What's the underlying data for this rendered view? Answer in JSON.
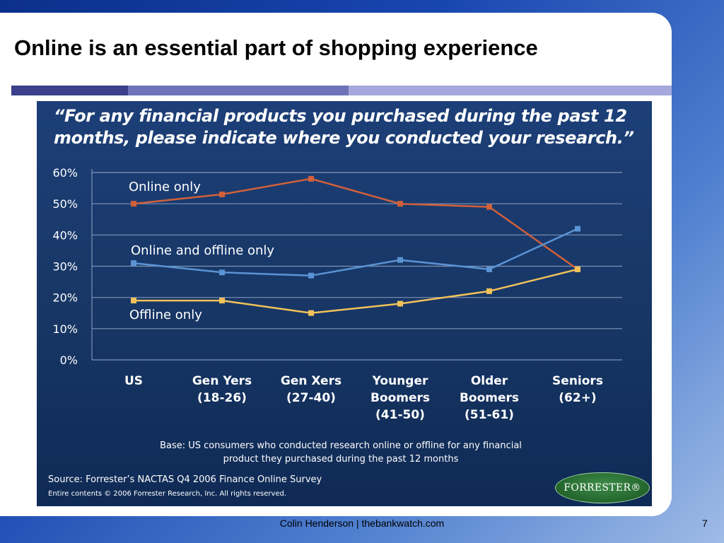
{
  "slide": {
    "title": "Online is an essential part of shopping experience",
    "footer": "Colin Henderson | thebankwatch.com",
    "page_number": "7"
  },
  "chart_panel": {
    "question": "“For any financial products you purchased during the past 12 months, please indicate where you conducted your research.”",
    "base_note": "Base: US consumers who conducted research online or offline for any financial product they purchased during the past 12 months",
    "source": "Source: Forrester’s NACTAS Q4 2006 Finance Online Survey",
    "copyright": "Entire contents © 2006  Forrester Research, Inc. All rights reserved.",
    "logo_text": "FORRESTER®"
  },
  "chart_data": {
    "type": "line",
    "title": "“For any financial products you purchased during the past 12 months, please indicate where you conducted your research.”",
    "categories": [
      [
        "US"
      ],
      [
        "Gen Yers",
        "(18-26)"
      ],
      [
        "Gen Xers",
        "(27-40)"
      ],
      [
        "Younger",
        "Boomers",
        "(41-50)"
      ],
      [
        "Older",
        "Boomers",
        "(51-61)"
      ],
      [
        "Seniors",
        "(62+)"
      ]
    ],
    "y_ticks": [
      "0%",
      "10%",
      "20%",
      "30%",
      "40%",
      "50%",
      "60%"
    ],
    "ylim": [
      0,
      60
    ],
    "grid": true,
    "series": [
      {
        "name": "Online only",
        "values": [
          50,
          53,
          58,
          50,
          49,
          29
        ],
        "color": "#d2603a"
      },
      {
        "name": "Online and offline only",
        "values": [
          31,
          28,
          27,
          32,
          29,
          42
        ],
        "color": "#5b93d4"
      },
      {
        "name": "Offline only",
        "values": [
          19,
          19,
          15,
          18,
          22,
          29
        ],
        "color": "#f2c25a"
      }
    ]
  }
}
